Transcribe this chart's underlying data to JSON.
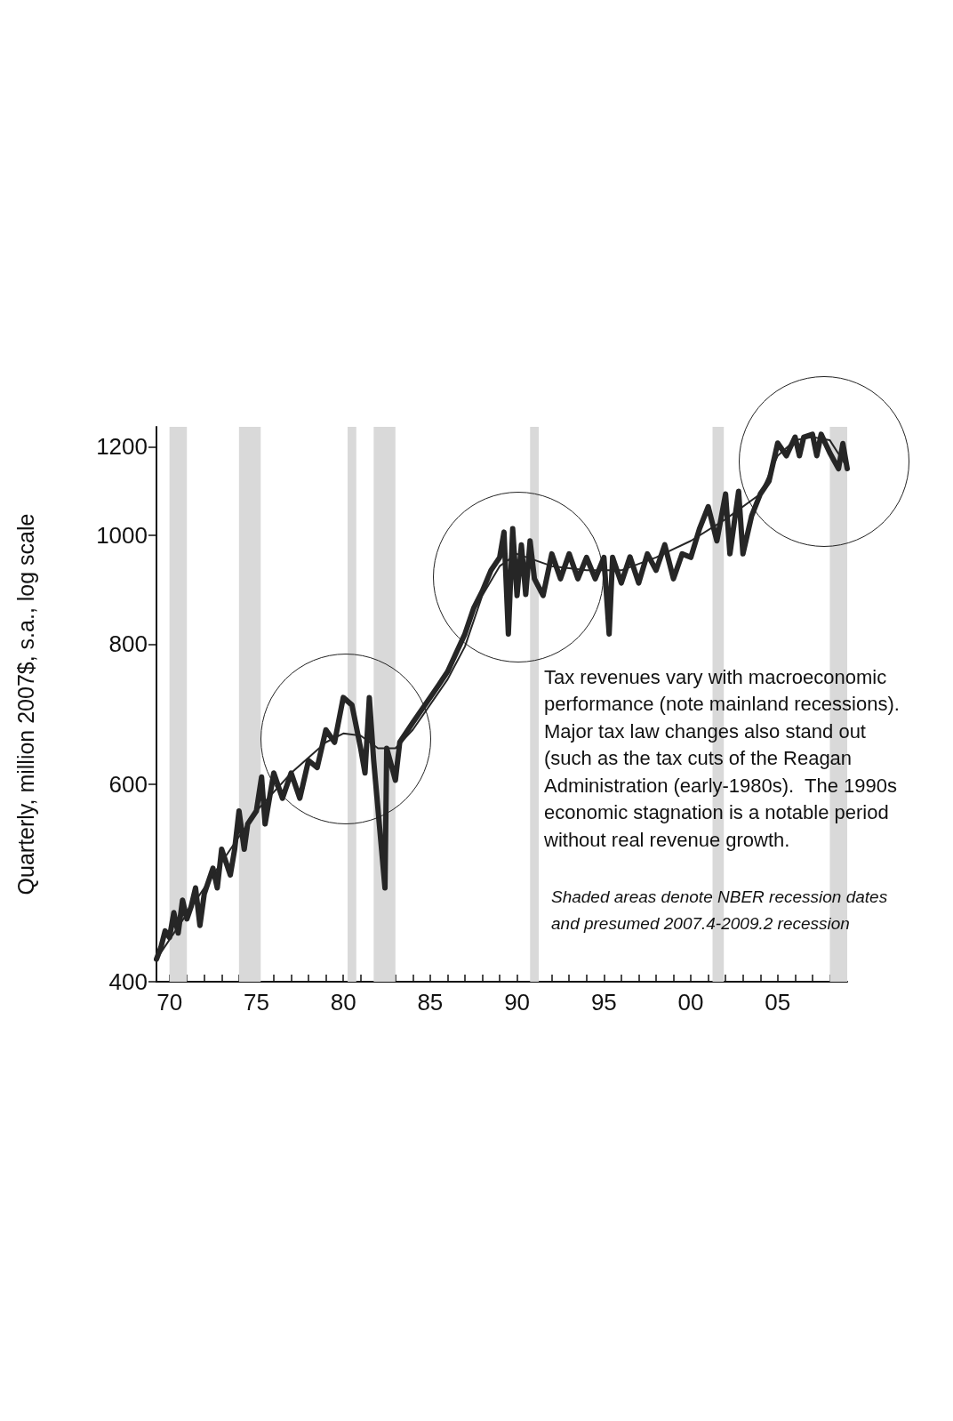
{
  "chart_data": {
    "type": "line",
    "ylabel": "Quarterly, million 2007$, s.a., log scale",
    "annotations": [
      "Tax revenues vary with macroeconomic\nperformance (note mainland recessions).\nMajor tax law changes also stand out\n(such as the tax cuts of the Reagan\nAdministration (early-1980s).  The 1990s\neconomic stagnation is a notable period\nwithout real revenue growth.",
      "Shaded areas denote NBER recession dates\nand presumed 2007.4-2009.2 recession"
    ],
    "series": [
      {
        "color": "#262626",
        "line_style": "solid",
        "x": [
          1969.25,
          1969.5,
          1969.75,
          1970.0,
          1970.25,
          1970.5,
          1970.75,
          1971.0,
          1971.25,
          1971.5,
          1971.75,
          1972.0,
          1972.5,
          1972.75,
          1973.0,
          1973.5,
          1973.75,
          1974.0,
          1974.3,
          1974.5,
          1975.0,
          1975.3,
          1975.5,
          1976.0,
          1976.5,
          1977.0,
          1977.5,
          1978.0,
          1978.5,
          1979.0,
          1979.5,
          1980.0,
          1980.5,
          1981.0,
          1981.25,
          1981.5,
          1981.75,
          1982.4,
          1982.5,
          1983.0,
          1983.25,
          1984.0,
          1985.0,
          1985.5,
          1986.0,
          1987.0,
          1987.5,
          1988.0,
          1988.5,
          1989.0,
          1989.25,
          1989.5,
          1989.75,
          1990.0,
          1990.25,
          1990.5,
          1990.75,
          1991.0,
          1991.5,
          1992.0,
          1992.5,
          1993.0,
          1993.5,
          1994.0,
          1994.5,
          1995.0,
          1995.3,
          1995.5,
          1996.0,
          1996.5,
          1997.0,
          1997.5,
          1998.0,
          1998.5,
          1999.0,
          1999.5,
          2000.0,
          2000.5,
          2001.0,
          2001.5,
          2002.0,
          2002.25,
          2002.75,
          2003.0,
          2003.5,
          2004.0,
          2004.5,
          2005.0,
          2005.5,
          2006.0,
          2006.25,
          2006.5,
          2007.0,
          2007.25,
          2007.5,
          2008.0,
          2008.5,
          2008.75,
          2009.0
        ],
        "values": [
          419,
          429,
          444,
          438,
          461,
          442,
          473,
          455,
          467,
          485,
          449,
          479,
          505,
          485,
          525,
          498,
          525,
          568,
          525,
          553,
          568,
          609,
          553,
          614,
          583,
          614,
          583,
          630,
          621,
          671,
          654,
          717,
          706,
          646,
          614,
          717,
          630,
          485,
          646,
          605,
          654,
          681,
          717,
          736,
          756,
          817,
          861,
          892,
          931,
          956,
          1007,
          817,
          1014,
          884,
          981,
          886,
          989,
          915,
          884,
          963,
          915,
          963,
          915,
          956,
          915,
          956,
          817,
          956,
          907,
          957,
          907,
          963,
          931,
          981,
          915,
          963,
          956,
          1014,
          1061,
          989,
          1089,
          963,
          1095,
          963,
          1041,
          1089,
          1118,
          1209,
          1178,
          1224,
          1178,
          1224,
          1231,
          1178,
          1231,
          1185,
          1147,
          1208,
          1147
        ]
      },
      {
        "color": "#262626",
        "line_style": "solid",
        "x": [
          1969.25,
          1972,
          1975,
          1977,
          1979,
          1980,
          1981,
          1982,
          1983,
          1984,
          1986,
          1987,
          1988,
          1989,
          1990,
          1992,
          1994,
          1996,
          1998,
          2000,
          2002,
          2004,
          2005,
          2006,
          2007,
          2008,
          2009
        ],
        "values": [
          419,
          485,
          568,
          614,
          654,
          666,
          663,
          646,
          646,
          671,
          744,
          796,
          884,
          939,
          963,
          939,
          931,
          931,
          956,
          989,
          1034,
          1089,
          1178,
          1216,
          1224,
          1216,
          1150
        ]
      }
    ],
    "xlim": [
      1969.25,
      2009
    ],
    "xticks": [
      {
        "value": 1970,
        "label": "70"
      },
      {
        "value": 1971,
        "label": null
      },
      {
        "value": 1972,
        "label": null
      },
      {
        "value": 1973,
        "label": null
      },
      {
        "value": 1974,
        "label": null
      },
      {
        "value": 1975,
        "label": "75"
      },
      {
        "value": 1976,
        "label": null
      },
      {
        "value": 1977,
        "label": null
      },
      {
        "value": 1978,
        "label": null
      },
      {
        "value": 1979,
        "label": null
      },
      {
        "value": 1980,
        "label": "80"
      },
      {
        "value": 1981,
        "label": null
      },
      {
        "value": 1982,
        "label": null
      },
      {
        "value": 1983,
        "label": null
      },
      {
        "value": 1984,
        "label": null
      },
      {
        "value": 1985,
        "label": "85"
      },
      {
        "value": 1986,
        "label": null
      },
      {
        "value": 1987,
        "label": null
      },
      {
        "value": 1988,
        "label": null
      },
      {
        "value": 1989,
        "label": null
      },
      {
        "value": 1990,
        "label": "90"
      },
      {
        "value": 1991,
        "label": null
      },
      {
        "value": 1992,
        "label": null
      },
      {
        "value": 1993,
        "label": null
      },
      {
        "value": 1994,
        "label": null
      },
      {
        "value": 1995,
        "label": "95"
      },
      {
        "value": 1996,
        "label": null
      },
      {
        "value": 1997,
        "label": null
      },
      {
        "value": 1998,
        "label": null
      },
      {
        "value": 1999,
        "label": null
      },
      {
        "value": 2000,
        "label": "00"
      },
      {
        "value": 2001,
        "label": null
      },
      {
        "value": 2002,
        "label": null
      },
      {
        "value": 2003,
        "label": null
      },
      {
        "value": 2004,
        "label": null
      },
      {
        "value": 2005,
        "label": "05"
      },
      {
        "value": 2006,
        "label": null
      },
      {
        "value": 2007,
        "label": null
      },
      {
        "value": 2008,
        "label": null
      }
    ],
    "ylim": [
      400,
      1250
    ],
    "yticks": [
      400,
      600,
      800,
      1000,
      1200
    ],
    "log": "y",
    "bands": [
      {
        "axis": "x",
        "from": 1970.0,
        "to": 1971.0,
        "color": "#d9d9d9"
      },
      {
        "axis": "x",
        "from": 1974.0,
        "to": 1975.25,
        "color": "#d9d9d9"
      },
      {
        "axis": "x",
        "from": 1980.25,
        "to": 1980.75,
        "color": "#d9d9d9"
      },
      {
        "axis": "x",
        "from": 1981.75,
        "to": 1983.0,
        "color": "#d9d9d9"
      },
      {
        "axis": "x",
        "from": 1990.75,
        "to": 1991.25,
        "color": "#d9d9d9"
      },
      {
        "axis": "x",
        "from": 2001.25,
        "to": 2001.9,
        "color": "#d9d9d9"
      },
      {
        "axis": "x",
        "from": 2008.0,
        "to": 2009.0,
        "color": "#d9d9d9"
      }
    ],
    "grid": false,
    "marker": "none"
  }
}
